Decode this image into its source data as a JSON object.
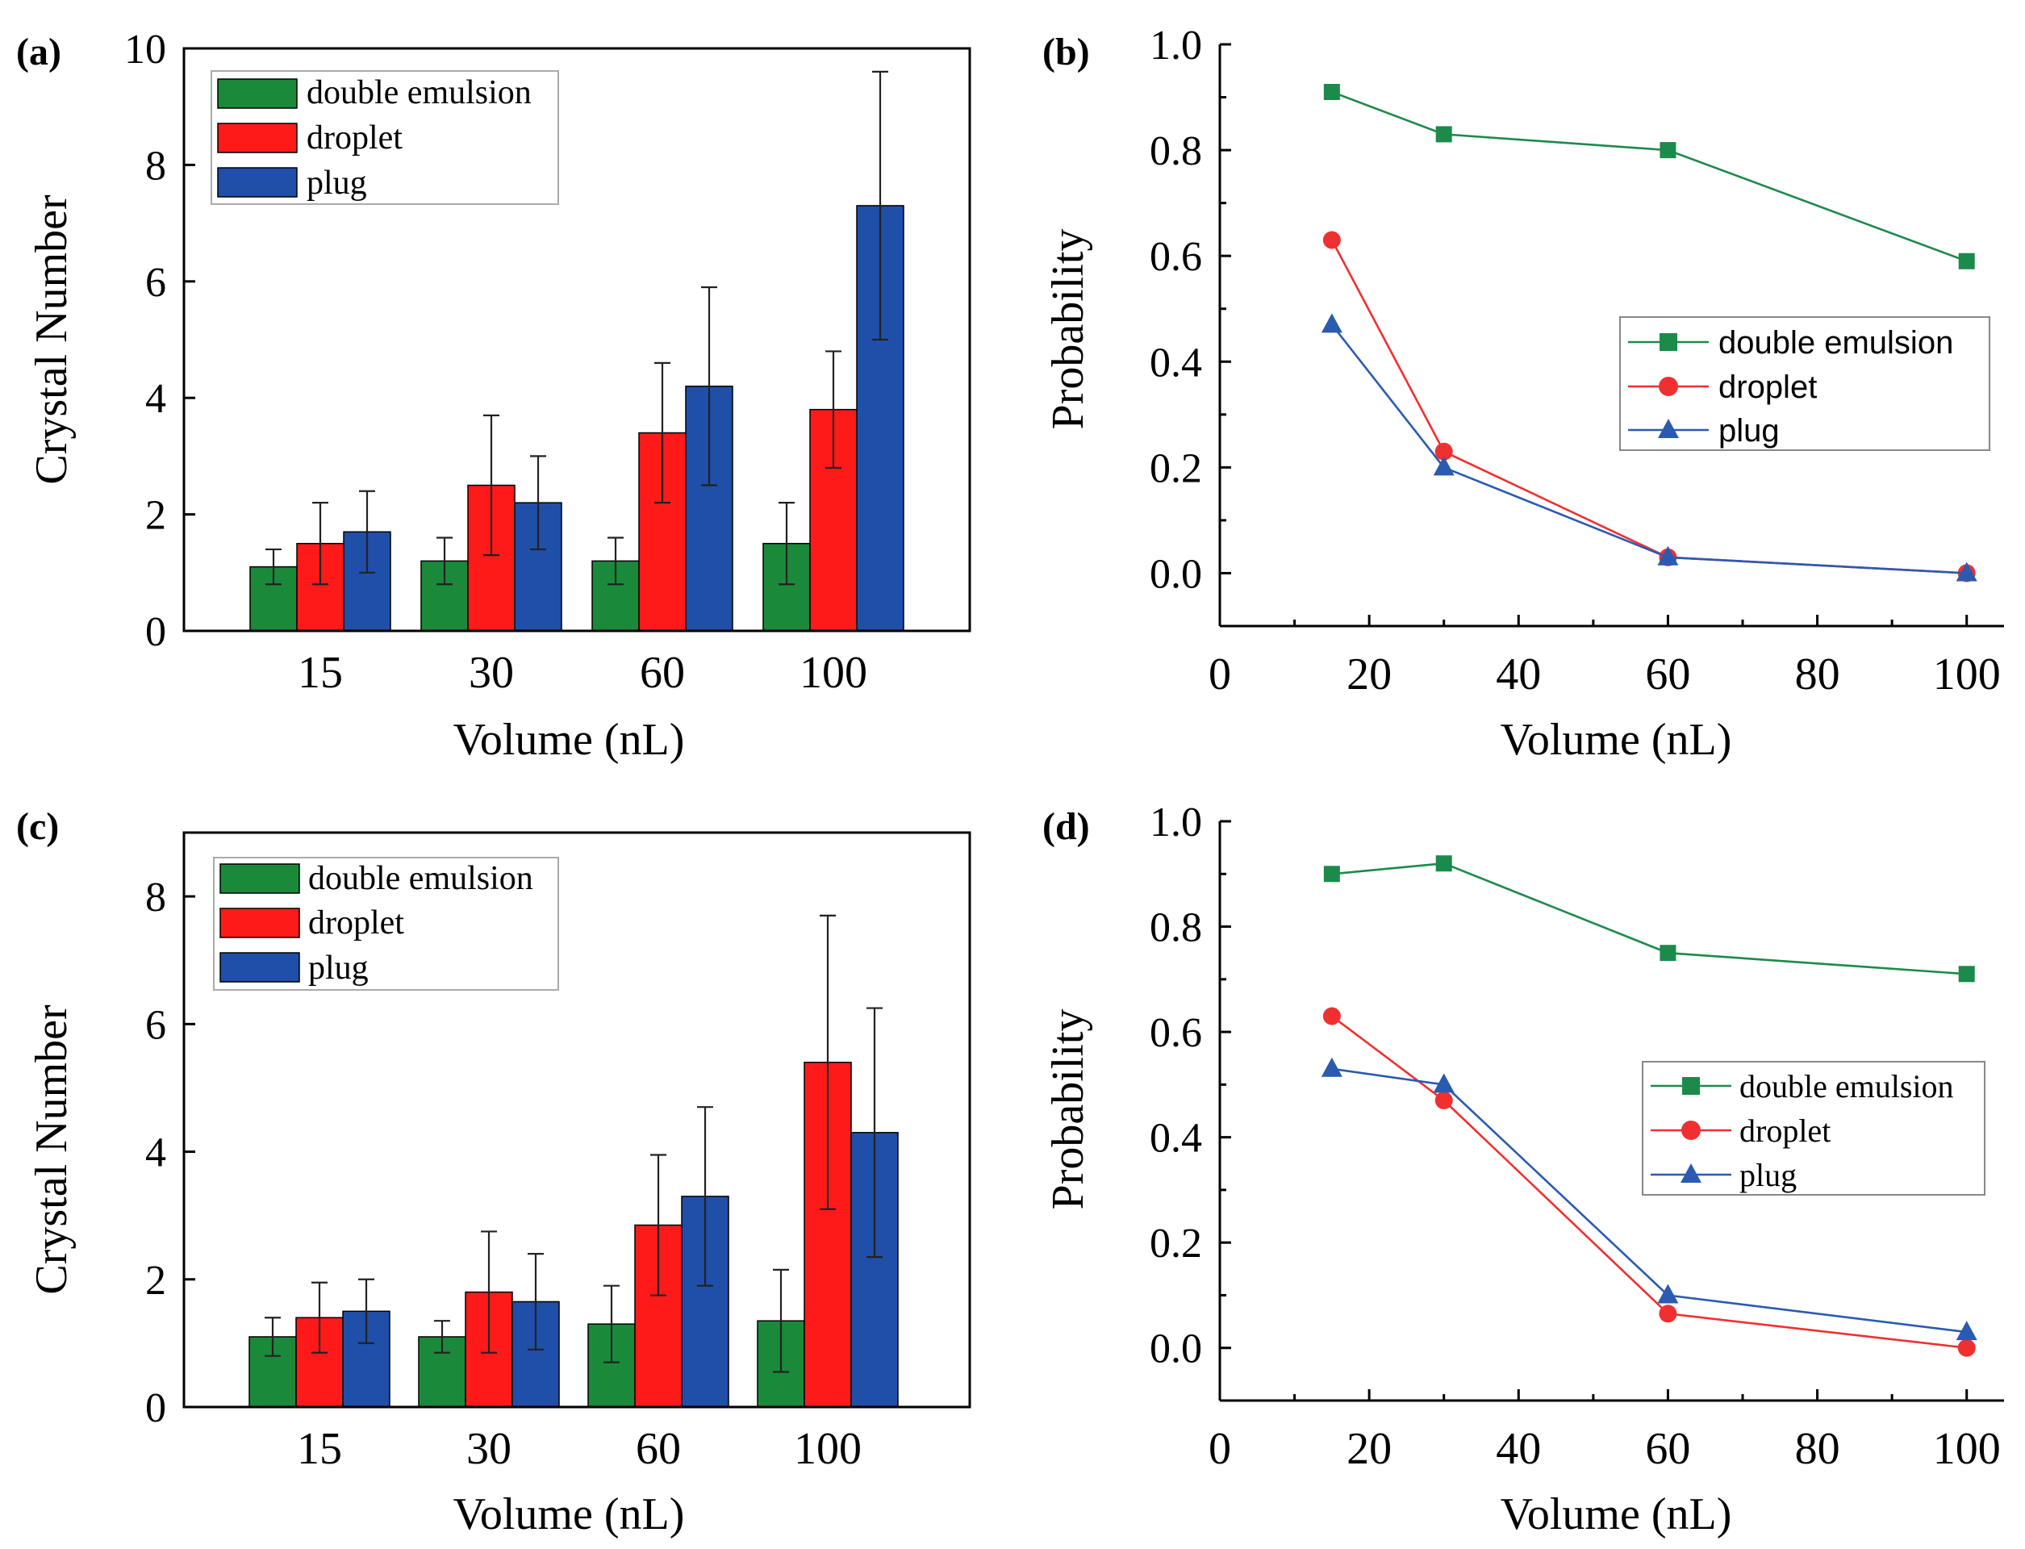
{
  "colors": {
    "double_emulsion": "#1a8a3a",
    "droplet": "#ff1a1a",
    "plug": "#1f4fa8",
    "line_double_emulsion": "#1c8a4a",
    "line_droplet": "#f03030",
    "line_plug": "#2a5bb0"
  },
  "chart_data": [
    {
      "id": "a",
      "panel_label": "(a)",
      "type": "bar",
      "title": "",
      "xlabel": "Volume (nL)",
      "ylabel": "Crystal Number",
      "categories": [
        "15",
        "30",
        "60",
        "100"
      ],
      "ylim": [
        0,
        10
      ],
      "yticks": [
        0,
        2,
        4,
        6,
        8,
        10
      ],
      "ytick_labels": [
        "0",
        "2",
        "4",
        "6",
        "8",
        "10"
      ],
      "legend_position": "top-left",
      "series": [
        {
          "name": "double emulsion",
          "key": "double_emulsion",
          "values": [
            1.1,
            1.2,
            1.2,
            1.5
          ],
          "errors": [
            0.3,
            0.4,
            0.4,
            0.7
          ]
        },
        {
          "name": "droplet",
          "key": "droplet",
          "values": [
            1.5,
            2.5,
            3.4,
            3.8
          ],
          "errors": [
            0.7,
            1.2,
            1.2,
            1.0
          ]
        },
        {
          "name": "plug",
          "key": "plug",
          "values": [
            1.7,
            2.2,
            4.2,
            7.3
          ],
          "errors": [
            0.7,
            0.8,
            1.7,
            2.3
          ]
        }
      ]
    },
    {
      "id": "b",
      "panel_label": "(b)",
      "type": "line",
      "title": "",
      "xlabel": "Volume (nL)",
      "ylabel": "Probability",
      "xlim": [
        0,
        105
      ],
      "ylim": [
        -0.1,
        1.0
      ],
      "xticks": [
        0,
        20,
        40,
        60,
        80,
        100
      ],
      "xtick_labels": [
        "0",
        "20",
        "40",
        "60",
        "80",
        "100"
      ],
      "yticks": [
        0.0,
        0.2,
        0.4,
        0.6,
        0.8,
        1.0
      ],
      "ytick_labels": [
        "0.0",
        "0.2",
        "0.4",
        "0.6",
        "0.8",
        "1.0"
      ],
      "legend_position": "center-right",
      "series": [
        {
          "name": "double emulsion",
          "key": "line_double_emulsion",
          "marker": "square",
          "x": [
            15,
            30,
            60,
            100
          ],
          "y": [
            0.91,
            0.83,
            0.8,
            0.59
          ]
        },
        {
          "name": "droplet",
          "key": "line_droplet",
          "marker": "circle",
          "x": [
            15,
            30,
            60,
            100
          ],
          "y": [
            0.63,
            0.23,
            0.03,
            0.0
          ]
        },
        {
          "name": "plug",
          "key": "line_plug",
          "marker": "triangle",
          "x": [
            15,
            30,
            60,
            100
          ],
          "y": [
            0.47,
            0.2,
            0.03,
            0.0
          ]
        }
      ]
    },
    {
      "id": "c",
      "panel_label": "(c)",
      "type": "bar",
      "title": "",
      "xlabel": "Volume (nL)",
      "ylabel": "Crystal Number",
      "categories": [
        "15",
        "30",
        "60",
        "100"
      ],
      "ylim": [
        0,
        9
      ],
      "yticks": [
        0,
        2,
        4,
        6,
        8
      ],
      "ytick_labels": [
        "0",
        "2",
        "4",
        "6",
        "8"
      ],
      "legend_position": "top-left",
      "series": [
        {
          "name": "double emulsion",
          "key": "double_emulsion",
          "values": [
            1.1,
            1.1,
            1.3,
            1.35
          ],
          "errors": [
            0.3,
            0.25,
            0.6,
            0.8
          ]
        },
        {
          "name": "droplet",
          "key": "droplet",
          "values": [
            1.4,
            1.8,
            2.85,
            5.4
          ],
          "errors": [
            0.55,
            0.95,
            1.1,
            2.3
          ]
        },
        {
          "name": "plug",
          "key": "plug",
          "values": [
            1.5,
            1.65,
            3.3,
            4.3
          ],
          "errors": [
            0.5,
            0.75,
            1.4,
            1.95
          ]
        }
      ]
    },
    {
      "id": "d",
      "panel_label": "(d)",
      "type": "line",
      "title": "",
      "xlabel": "Volume (nL)",
      "ylabel": "Probability",
      "xlim": [
        0,
        105
      ],
      "ylim": [
        -0.1,
        1.0
      ],
      "xticks": [
        0,
        20,
        40,
        60,
        80,
        100
      ],
      "xtick_labels": [
        "0",
        "20",
        "40",
        "60",
        "80",
        "100"
      ],
      "yticks": [
        0.0,
        0.2,
        0.4,
        0.6,
        0.8,
        1.0
      ],
      "ytick_labels": [
        "0.0",
        "0.2",
        "0.4",
        "0.6",
        "0.8",
        "1.0"
      ],
      "legend_position": "center-right",
      "series": [
        {
          "name": "double emulsion",
          "key": "line_double_emulsion",
          "marker": "square",
          "x": [
            15,
            30,
            60,
            100
          ],
          "y": [
            0.9,
            0.92,
            0.75,
            0.71
          ]
        },
        {
          "name": "droplet",
          "key": "line_droplet",
          "marker": "circle",
          "x": [
            15,
            30,
            60,
            100
          ],
          "y": [
            0.63,
            0.47,
            0.065,
            0.0
          ]
        },
        {
          "name": "plug",
          "key": "line_plug",
          "marker": "triangle",
          "x": [
            15,
            30,
            60,
            100
          ],
          "y": [
            0.53,
            0.5,
            0.1,
            0.03
          ]
        }
      ]
    }
  ]
}
